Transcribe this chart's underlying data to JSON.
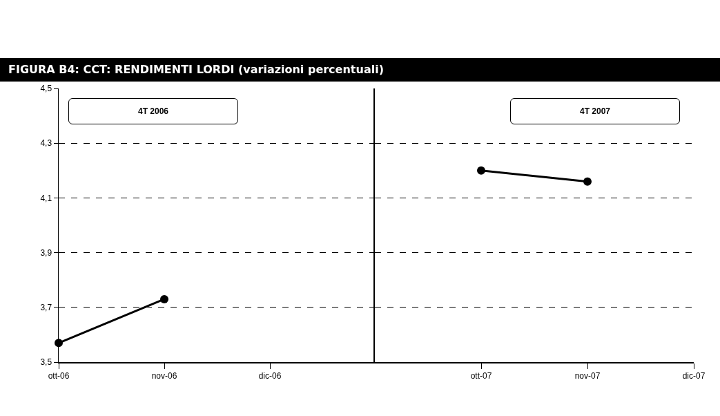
{
  "chart_data": [
    {
      "type": "line",
      "title": "FIGURA B4: CCT: RENDIMENTI LORDI (variazioni percentuali)",
      "categories": [
        "ott-06",
        "nov-06",
        "dic-06"
      ],
      "series": [
        {
          "color": "#000000",
          "values": [
            3.57,
            3.73,
            null
          ]
        }
      ],
      "ylim": [
        3.5,
        4.5
      ],
      "yticks": [
        {
          "value": 3.5,
          "label": "3,5"
        },
        {
          "value": 3.7,
          "label": "3,7"
        },
        {
          "value": 3.9,
          "label": "3,9"
        },
        {
          "value": 4.1,
          "label": "4,1"
        },
        {
          "value": 4.3,
          "label": "4,3"
        },
        {
          "value": 4.5,
          "label": "4,5"
        }
      ],
      "grid": "y",
      "marker": "circle",
      "line_style": "solid",
      "annotations": [
        "4T 2006"
      ]
    },
    {
      "type": "line",
      "categories": [
        "ott-07",
        "nov-07",
        "dic-07"
      ],
      "series": [
        {
          "color": "#000000",
          "values": [
            4.2,
            4.16,
            null
          ]
        }
      ],
      "ylim": [
        3.5,
        4.5
      ],
      "yticks": [
        {
          "value": 3.5,
          "label": null
        },
        {
          "value": 3.7,
          "label": null
        },
        {
          "value": 3.9,
          "label": null
        },
        {
          "value": 4.1,
          "label": null
        },
        {
          "value": 4.3,
          "label": null
        },
        {
          "value": 4.5,
          "label": null
        }
      ],
      "grid": "y",
      "marker": "circle",
      "line_style": "solid",
      "tick_labels": "x",
      "annotations": [
        "4T 2007"
      ]
    }
  ]
}
